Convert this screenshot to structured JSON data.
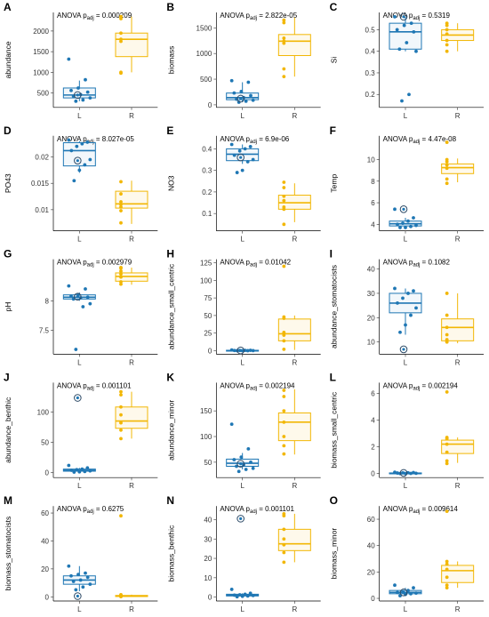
{
  "colors": {
    "L": "#1f77b4",
    "R": "#f2b705"
  },
  "groups": [
    "L",
    "R"
  ],
  "chart_data": [
    {
      "type": "box",
      "letter": "A",
      "ylabel": "abundance",
      "stat": {
        "prefix": "ANOVA p",
        "sub": "adj",
        "value": "= 0.000209"
      },
      "yticks": [
        500,
        1000,
        1500,
        2000
      ],
      "ylim": [
        150,
        2450
      ],
      "boxes": {
        "L": {
          "q1": 380,
          "median": 450,
          "q3": 620,
          "whislo": 300,
          "whishi": 800
        },
        "R": {
          "q1": 1380,
          "median": 1800,
          "q3": 1950,
          "whislo": 1000,
          "whishi": 2350
        }
      },
      "points": {
        "L": [
          1320,
          820,
          620,
          560,
          520,
          460,
          420,
          380,
          330,
          300
        ],
        "R": [
          2350,
          2300,
          1950,
          1800,
          1750,
          1000,
          980
        ]
      },
      "outliers": {
        "L": [
          450
        ],
        "R": []
      }
    },
    {
      "type": "box",
      "letter": "B",
      "ylabel": "biomass",
      "stat": {
        "prefix": "ANOVA p",
        "sub": "adj",
        "value": "= 2.822e-05"
      },
      "yticks": [
        0,
        500,
        1000,
        1500
      ],
      "ylim": [
        -50,
        1800
      ],
      "boxes": {
        "L": {
          "q1": 100,
          "median": 140,
          "q3": 230,
          "whislo": 50,
          "whishi": 440
        },
        "R": {
          "q1": 960,
          "median": 1240,
          "q3": 1370,
          "whislo": 550,
          "whishi": 1700
        }
      },
      "points": {
        "L": [
          470,
          440,
          260,
          230,
          180,
          140,
          110,
          90,
          70,
          50
        ],
        "R": [
          1650,
          1600,
          1300,
          1240,
          1200,
          700,
          550
        ]
      },
      "outliers": {
        "L": [
          120
        ],
        "R": []
      }
    },
    {
      "type": "box",
      "letter": "C",
      "ylabel": "Si",
      "stat": {
        "prefix": "ANOVA p",
        "sub": "adj",
        "value": "= 0.5319"
      },
      "yticks": [
        0.2,
        0.3,
        0.4,
        0.5
      ],
      "ylim": [
        0.14,
        0.58
      ],
      "boxes": {
        "L": {
          "q1": 0.41,
          "median": 0.49,
          "q3": 0.53,
          "whislo": 0.4,
          "whishi": 0.56
        },
        "R": {
          "q1": 0.45,
          "median": 0.475,
          "q3": 0.5,
          "whislo": 0.4,
          "whishi": 0.53
        }
      },
      "points": {
        "L": [
          0.56,
          0.53,
          0.52,
          0.5,
          0.49,
          0.44,
          0.41,
          0.4,
          0.2,
          0.17
        ],
        "R": [
          0.53,
          0.52,
          0.5,
          0.48,
          0.45,
          0.43,
          0.4
        ]
      },
      "outliers": {
        "L": [
          0.56
        ],
        "R": []
      }
    },
    {
      "type": "box",
      "letter": "D",
      "ylabel": "PO43",
      "stat": {
        "prefix": "ANOVA p",
        "sub": "adj",
        "value": "= 8.027e-05"
      },
      "yticks": [
        0.01,
        0.015,
        0.02
      ],
      "ylim": [
        0.006,
        0.024
      ],
      "boxes": {
        "L": {
          "q1": 0.0183,
          "median": 0.0212,
          "q3": 0.0227,
          "whislo": 0.017,
          "whishi": 0.023
        },
        "R": {
          "q1": 0.0103,
          "median": 0.0111,
          "q3": 0.0135,
          "whislo": 0.0073,
          "whishi": 0.0155
        }
      },
      "points": {
        "L": [
          0.0232,
          0.0228,
          0.0225,
          0.022,
          0.0212,
          0.0195,
          0.0185,
          0.0175,
          0.0155
        ],
        "R": [
          0.0153,
          0.013,
          0.0115,
          0.011,
          0.0105,
          0.0098,
          0.0075
        ]
      },
      "outliers": {
        "L": [
          0.0193
        ],
        "R": []
      }
    },
    {
      "type": "box",
      "letter": "E",
      "ylabel": "NO3",
      "stat": {
        "prefix": "ANOVA p",
        "sub": "adj",
        "value": "= 6.9e-06"
      },
      "yticks": [
        0.1,
        0.2,
        0.3,
        0.4
      ],
      "ylim": [
        0.02,
        0.46
      ],
      "boxes": {
        "L": {
          "q1": 0.345,
          "median": 0.375,
          "q3": 0.4,
          "whislo": 0.33,
          "whishi": 0.42
        },
        "R": {
          "q1": 0.12,
          "median": 0.15,
          "q3": 0.185,
          "whislo": 0.06,
          "whishi": 0.24
        }
      },
      "points": {
        "L": [
          0.42,
          0.41,
          0.4,
          0.39,
          0.37,
          0.35,
          0.34,
          0.3,
          0.29
        ],
        "R": [
          0.245,
          0.22,
          0.18,
          0.16,
          0.13,
          0.12,
          0.05
        ]
      },
      "outliers": {
        "L": [
          0.36
        ],
        "R": []
      }
    },
    {
      "type": "box",
      "letter": "F",
      "ylabel": "Temp",
      "stat": {
        "prefix": "ANOVA p",
        "sub": "adj",
        "value": "= 4.47e-08"
      },
      "yticks": [
        4,
        6,
        8,
        10
      ],
      "ylim": [
        3.4,
        12.2
      ],
      "boxes": {
        "L": {
          "q1": 3.85,
          "median": 4.05,
          "q3": 4.3,
          "whislo": 3.7,
          "whishi": 4.6
        },
        "R": {
          "q1": 8.7,
          "median": 9.25,
          "q3": 9.6,
          "whislo": 7.9,
          "whishi": 10.1
        }
      },
      "points": {
        "L": [
          5.4,
          4.6,
          4.3,
          4.1,
          4.0,
          3.9,
          3.8,
          3.7,
          3.7
        ],
        "R": [
          11.6,
          10.0,
          9.8,
          9.5,
          9.2,
          8.2,
          7.8
        ]
      },
      "outliers": {
        "L": [
          5.4
        ],
        "R": []
      }
    },
    {
      "type": "box",
      "letter": "G",
      "ylabel": "pH",
      "stat": {
        "prefix": "ANOVA p",
        "sub": "adj",
        "value": "= 0.002979"
      },
      "yticks": [
        7.5,
        8.0
      ],
      "ylim": [
        7.1,
        8.7
      ],
      "boxes": {
        "L": {
          "q1": 8.03,
          "median": 8.06,
          "q3": 8.1,
          "whislo": 8.0,
          "whishi": 8.14
        },
        "R": {
          "q1": 8.33,
          "median": 8.41,
          "q3": 8.47,
          "whislo": 8.27,
          "whishi": 8.56
        }
      },
      "points": {
        "L": [
          8.25,
          8.2,
          8.1,
          8.08,
          8.06,
          8.05,
          8.03,
          7.95,
          7.9,
          7.18
        ],
        "R": [
          8.56,
          8.55,
          8.5,
          8.45,
          8.4,
          8.32,
          8.28
        ]
      },
      "outliers": {
        "L": [
          8.07
        ],
        "R": []
      }
    },
    {
      "type": "box",
      "letter": "H",
      "ylabel": "abundance_small_centric",
      "stat": {
        "prefix": "ANOVA p",
        "sub": "adj",
        "value": "= 0.01042"
      },
      "yticks": [
        0,
        25,
        50,
        75,
        100,
        125
      ],
      "ylim": [
        -5,
        130
      ],
      "boxes": {
        "L": {
          "q1": 0,
          "median": 0,
          "q3": 0.6,
          "whislo": 0,
          "whishi": 1
        },
        "R": {
          "q1": 14,
          "median": 24,
          "q3": 45,
          "whislo": 1,
          "whishi": 50
        }
      },
      "points": {
        "L": [
          1,
          0.5,
          0.4,
          0.3,
          0.2,
          0.1,
          0,
          0,
          0
        ],
        "R": [
          120,
          48,
          46,
          26,
          22,
          14,
          2
        ]
      },
      "outliers": {
        "L": [
          0.3
        ],
        "R": []
      }
    },
    {
      "type": "box",
      "letter": "I",
      "ylabel": "abundance_stomatocists",
      "stat": {
        "prefix": "ANOVA p",
        "sub": "adj",
        "value": "= 0.1082"
      },
      "yticks": [
        10,
        20,
        30,
        40
      ],
      "ylim": [
        5,
        44
      ],
      "boxes": {
        "L": {
          "q1": 22,
          "median": 26,
          "q3": 30,
          "whislo": 13,
          "whishi": 32
        },
        "R": {
          "q1": 10.5,
          "median": 16,
          "q3": 19.5,
          "whislo": 9.5,
          "whishi": 30
        }
      },
      "points": {
        "L": [
          32,
          31,
          30,
          28,
          26,
          24,
          21,
          17,
          14
        ],
        "R": [
          30,
          21,
          16,
          13,
          11,
          10.5,
          10
        ]
      },
      "outliers": {
        "L": [
          7
        ],
        "R": []
      }
    },
    {
      "type": "box",
      "letter": "J",
      "ylabel": "abundance_benthic",
      "stat": {
        "prefix": "ANOVA p",
        "sub": "adj",
        "value": "= 0.001101"
      },
      "yticks": [
        0,
        50,
        100
      ],
      "ylim": [
        -8,
        148
      ],
      "boxes": {
        "L": {
          "q1": 2.5,
          "median": 4,
          "q3": 6,
          "whislo": 1,
          "whishi": 8
        },
        "R": {
          "q1": 73,
          "median": 85,
          "q3": 108,
          "whislo": 56,
          "whishi": 133
        }
      },
      "points": {
        "L": [
          12,
          8,
          6,
          5,
          4,
          3,
          2,
          1.5,
          1
        ],
        "R": [
          133,
          128,
          108,
          95,
          82,
          70,
          56
        ]
      },
      "outliers": {
        "L": [
          123
        ],
        "R": []
      }
    },
    {
      "type": "box",
      "letter": "K",
      "ylabel": "abundance_minor",
      "stat": {
        "prefix": "ANOVA p",
        "sub": "adj",
        "value": "= 0.002194"
      },
      "yticks": [
        50,
        100,
        150
      ],
      "ylim": [
        20,
        205
      ],
      "boxes": {
        "L": {
          "q1": 42,
          "median": 48,
          "q3": 56,
          "whislo": 36,
          "whishi": 68
        },
        "R": {
          "q1": 92,
          "median": 128,
          "q3": 146,
          "whislo": 65,
          "whishi": 192
        }
      },
      "points": {
        "L": [
          124,
          76,
          60,
          55,
          50,
          45,
          42,
          38,
          36,
          32
        ],
        "R": [
          190,
          178,
          150,
          128,
          100,
          82,
          66
        ]
      },
      "outliers": {
        "L": [
          47
        ],
        "R": []
      }
    },
    {
      "type": "box",
      "letter": "L",
      "ylabel": "biomass_small_centric",
      "stat": {
        "prefix": "ANOVA p",
        "sub": "adj",
        "value": "= 0.002194"
      },
      "yticks": [
        0,
        2,
        4,
        6
      ],
      "ylim": [
        -0.3,
        6.8
      ],
      "boxes": {
        "L": {
          "q1": 0,
          "median": 0,
          "q3": 0.05,
          "whislo": 0,
          "whishi": 0.1
        },
        "R": {
          "q1": 1.5,
          "median": 2.2,
          "q3": 2.5,
          "whislo": 0.8,
          "whishi": 2.7
        }
      },
      "points": {
        "L": [
          0.1,
          0.08,
          0.06,
          0.05,
          0.04,
          0.02,
          0.01,
          0,
          0
        ],
        "R": [
          6.1,
          2.7,
          2.6,
          2.2,
          1.6,
          0.95,
          0.75
        ]
      },
      "outliers": {
        "L": [
          0.05
        ],
        "R": []
      }
    },
    {
      "type": "box",
      "letter": "M",
      "ylabel": "biomass_stomatocists",
      "stat": {
        "prefix": "ANOVA p",
        "sub": "adj",
        "value": "= 0.6275"
      },
      "yticks": [
        0,
        20,
        40,
        60
      ],
      "ylim": [
        -3,
        65
      ],
      "boxes": {
        "L": {
          "q1": 9,
          "median": 12,
          "q3": 15,
          "whislo": 4,
          "whishi": 22
        },
        "R": {
          "q1": 0.2,
          "median": 0.5,
          "q3": 1,
          "whislo": 0,
          "whishi": 1.5
        }
      },
      "points": {
        "L": [
          22,
          17,
          16,
          15,
          14,
          12,
          11,
          9,
          7,
          5
        ],
        "R": [
          58,
          1.5,
          1,
          0.8,
          0.5,
          0.3,
          0.1
        ]
      },
      "outliers": {
        "L": [
          0.5
        ],
        "R": []
      }
    },
    {
      "type": "box",
      "letter": "N",
      "ylabel": "biomass_benthic",
      "stat": {
        "prefix": "ANOVA p",
        "sub": "adj",
        "value": "= 0.001101"
      },
      "yticks": [
        0,
        10,
        20,
        30,
        40
      ],
      "ylim": [
        -2,
        47
      ],
      "boxes": {
        "L": {
          "q1": 0.6,
          "median": 1.0,
          "q3": 1.5,
          "whislo": 0.2,
          "whishi": 2
        },
        "R": {
          "q1": 24,
          "median": 27.5,
          "q3": 35,
          "whislo": 18,
          "whishi": 43
        }
      },
      "points": {
        "L": [
          4,
          2,
          1.5,
          1.2,
          1,
          0.8,
          0.6,
          0.4,
          0.2
        ],
        "R": [
          43,
          42,
          35,
          30,
          27,
          23,
          18
        ]
      },
      "outliers": {
        "L": [
          40.5
        ],
        "R": []
      }
    },
    {
      "type": "box",
      "letter": "O",
      "ylabel": "biomass_minor",
      "stat": {
        "prefix": "ANOVA p",
        "sub": "adj",
        "value": "= 0.009614"
      },
      "yticks": [
        0,
        20,
        40,
        60
      ],
      "ylim": [
        -2,
        70
      ],
      "boxes": {
        "L": {
          "q1": 3.5,
          "median": 4.5,
          "q3": 6,
          "whislo": 2,
          "whishi": 8
        },
        "R": {
          "q1": 12,
          "median": 21,
          "q3": 25,
          "whislo": 8,
          "whishi": 28
        }
      },
      "points": {
        "L": [
          10,
          8,
          6,
          5,
          4.5,
          4,
          3.5,
          3,
          2
        ],
        "R": [
          66,
          28,
          26,
          22,
          16,
          10,
          8
        ]
      },
      "outliers": {
        "L": [
          4.5
        ],
        "R": []
      }
    }
  ]
}
